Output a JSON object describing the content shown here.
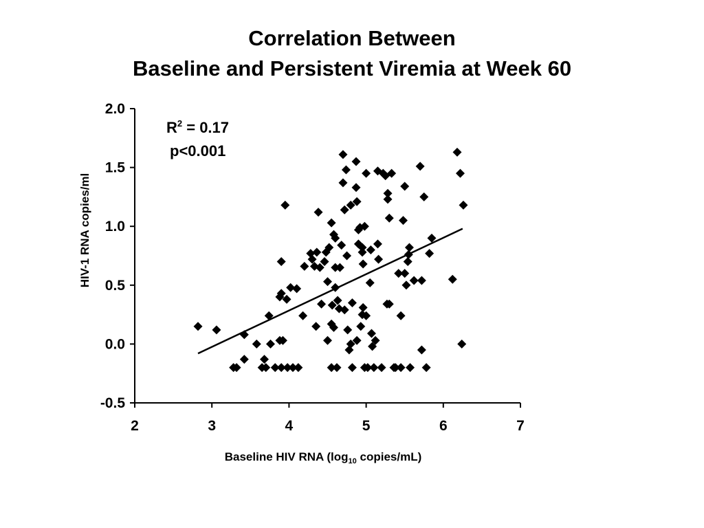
{
  "slide": {
    "title_line1": "Correlation Between",
    "title_line2": "Baseline and Persistent Viremia at Week 60"
  },
  "chart_data": {
    "type": "scatter",
    "title": "",
    "xlabel_main": "Baseline HIV RNA (log",
    "xlabel_sub": "10",
    "xlabel_end": " copies/mL)",
    "ylabel": "HIV-1 RNA copies/ml",
    "xlim": [
      2,
      7
    ],
    "ylim": [
      -0.5,
      2.0
    ],
    "xticks": [
      2,
      3,
      4,
      5,
      6,
      7
    ],
    "ytick_values": [
      -0.5,
      0.0,
      0.5,
      1.0,
      1.5,
      2.0
    ],
    "ytick_labels": [
      "-0.5",
      "0.0",
      "0.5",
      "1.0",
      "1.5",
      "2.0"
    ],
    "grid": false,
    "annotations": {
      "r2_prefix": "R",
      "r2_sup": "2",
      "r2_value": " = 0.17",
      "p_value": "p<0.001"
    },
    "marker": "diamond",
    "marker_color": "#000000",
    "trendline": {
      "x": [
        2.82,
        6.25
      ],
      "y": [
        -0.08,
        0.98
      ]
    },
    "points": [
      [
        2.82,
        0.15
      ],
      [
        3.06,
        0.12
      ],
      [
        3.28,
        -0.2
      ],
      [
        3.32,
        -0.2
      ],
      [
        3.42,
        0.08
      ],
      [
        3.42,
        -0.13
      ],
      [
        3.58,
        0.0
      ],
      [
        3.65,
        -0.2
      ],
      [
        3.68,
        -0.13
      ],
      [
        3.7,
        -0.2
      ],
      [
        3.74,
        0.24
      ],
      [
        3.76,
        0.0
      ],
      [
        3.82,
        -0.2
      ],
      [
        3.88,
        0.4
      ],
      [
        3.9,
        0.43
      ],
      [
        3.9,
        0.7
      ],
      [
        3.88,
        0.03
      ],
      [
        3.92,
        0.03
      ],
      [
        3.9,
        -0.2
      ],
      [
        3.95,
        1.18
      ],
      [
        3.97,
        0.38
      ],
      [
        3.98,
        -0.2
      ],
      [
        4.02,
        0.48
      ],
      [
        4.05,
        -0.2
      ],
      [
        4.1,
        0.47
      ],
      [
        4.12,
        -0.2
      ],
      [
        4.18,
        0.24
      ],
      [
        4.2,
        0.66
      ],
      [
        4.28,
        0.77
      ],
      [
        4.3,
        0.72
      ],
      [
        4.33,
        0.66
      ],
      [
        4.35,
        0.15
      ],
      [
        4.36,
        0.78
      ],
      [
        4.38,
        1.12
      ],
      [
        4.4,
        0.65
      ],
      [
        4.42,
        0.34
      ],
      [
        4.46,
        0.7
      ],
      [
        4.48,
        0.78
      ],
      [
        4.5,
        0.53
      ],
      [
        4.5,
        0.03
      ],
      [
        4.52,
        0.82
      ],
      [
        4.55,
        1.03
      ],
      [
        4.55,
        0.17
      ],
      [
        4.56,
        0.33
      ],
      [
        4.58,
        0.93
      ],
      [
        4.58,
        0.14
      ],
      [
        4.6,
        0.9
      ],
      [
        4.6,
        0.65
      ],
      [
        4.6,
        0.48
      ],
      [
        4.62,
        -0.2
      ],
      [
        4.63,
        0.37
      ],
      [
        4.55,
        -0.2
      ],
      [
        4.65,
        0.3
      ],
      [
        4.66,
        0.65
      ],
      [
        4.68,
        0.84
      ],
      [
        4.7,
        1.61
      ],
      [
        4.7,
        1.37
      ],
      [
        4.72,
        1.14
      ],
      [
        4.72,
        0.29
      ],
      [
        4.74,
        1.48
      ],
      [
        4.75,
        0.75
      ],
      [
        4.76,
        0.12
      ],
      [
        4.78,
        -0.05
      ],
      [
        4.8,
        1.18
      ],
      [
        4.8,
        0.0
      ],
      [
        4.82,
        0.35
      ],
      [
        4.82,
        -0.2
      ],
      [
        4.87,
        1.55
      ],
      [
        4.87,
        1.33
      ],
      [
        4.88,
        1.21
      ],
      [
        4.88,
        0.03
      ],
      [
        4.9,
        0.97
      ],
      [
        4.9,
        0.85
      ],
      [
        4.92,
        0.99
      ],
      [
        4.93,
        0.15
      ],
      [
        4.95,
        0.82
      ],
      [
        4.95,
        0.78
      ],
      [
        4.95,
        0.25
      ],
      [
        4.96,
        0.68
      ],
      [
        4.96,
        0.31
      ],
      [
        4.98,
        1.0
      ],
      [
        4.98,
        -0.2
      ],
      [
        5.0,
        1.45
      ],
      [
        5.0,
        0.24
      ],
      [
        5.02,
        -0.2
      ],
      [
        5.05,
        0.52
      ],
      [
        5.06,
        0.8
      ],
      [
        5.07,
        0.09
      ],
      [
        5.08,
        -0.02
      ],
      [
        5.1,
        -0.2
      ],
      [
        5.12,
        0.03
      ],
      [
        5.15,
        1.47
      ],
      [
        5.15,
        0.85
      ],
      [
        5.16,
        0.72
      ],
      [
        5.2,
        -0.2
      ],
      [
        5.22,
        1.45
      ],
      [
        5.25,
        1.43
      ],
      [
        5.27,
        0.34
      ],
      [
        5.28,
        1.28
      ],
      [
        5.28,
        1.23
      ],
      [
        5.3,
        1.07
      ],
      [
        5.3,
        0.34
      ],
      [
        5.33,
        1.45
      ],
      [
        5.36,
        -0.2
      ],
      [
        5.38,
        -0.2
      ],
      [
        5.42,
        0.6
      ],
      [
        5.45,
        0.24
      ],
      [
        5.45,
        -0.2
      ],
      [
        5.48,
        1.05
      ],
      [
        5.5,
        1.34
      ],
      [
        5.5,
        0.6
      ],
      [
        5.52,
        0.5
      ],
      [
        5.54,
        0.7
      ],
      [
        5.55,
        0.76
      ],
      [
        5.56,
        0.82
      ],
      [
        5.57,
        -0.2
      ],
      [
        5.62,
        0.54
      ],
      [
        5.7,
        1.51
      ],
      [
        5.72,
        0.54
      ],
      [
        5.72,
        -0.05
      ],
      [
        5.75,
        1.25
      ],
      [
        5.78,
        -0.2
      ],
      [
        5.82,
        0.77
      ],
      [
        5.85,
        0.9
      ],
      [
        6.12,
        0.55
      ],
      [
        6.18,
        1.63
      ],
      [
        6.22,
        1.45
      ],
      [
        6.24,
        0.0
      ],
      [
        6.26,
        1.18
      ]
    ]
  }
}
